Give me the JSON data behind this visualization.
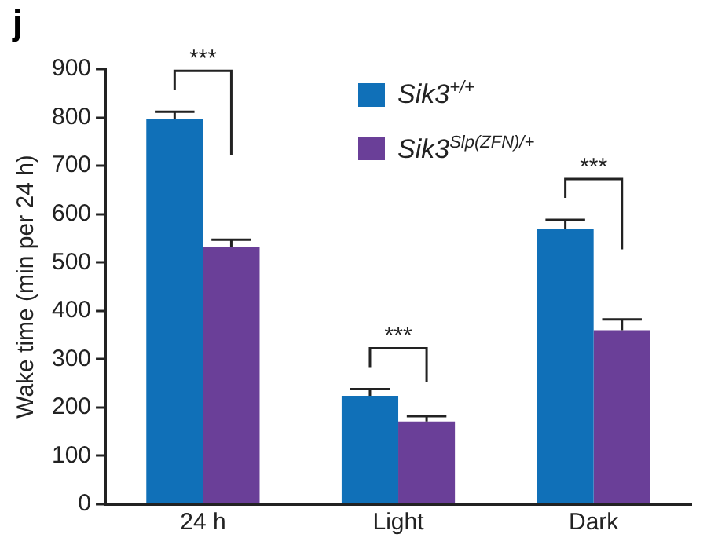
{
  "chart_data": {
    "type": "bar",
    "ylabel": "Wake time (min per 24 h)",
    "categories": [
      "24 h",
      "Light",
      "Dark"
    ],
    "series": [
      {
        "name": "Sik3$^{+/+}$",
        "color": "#1070b8",
        "values": [
          796,
          224,
          570
        ],
        "errors": [
          [
            796,
            812
          ],
          [
            224,
            238
          ],
          [
            570,
            588
          ]
        ]
      },
      {
        "name": "Sik3$^{Slp(ZFN)/+}$",
        "color": "#6a3f98",
        "values": [
          532,
          171,
          360
        ],
        "errors": [
          [
            532,
            547
          ],
          [
            171,
            182
          ],
          [
            360,
            382
          ]
        ]
      }
    ],
    "ylim": [
      0,
      900
    ],
    "yticks": [
      0,
      100,
      200,
      300,
      400,
      500,
      600,
      700,
      800,
      900
    ],
    "grid": false,
    "legend": "top right",
    "annotations": [
      "j",
      "***",
      "***",
      "***"
    ]
  }
}
